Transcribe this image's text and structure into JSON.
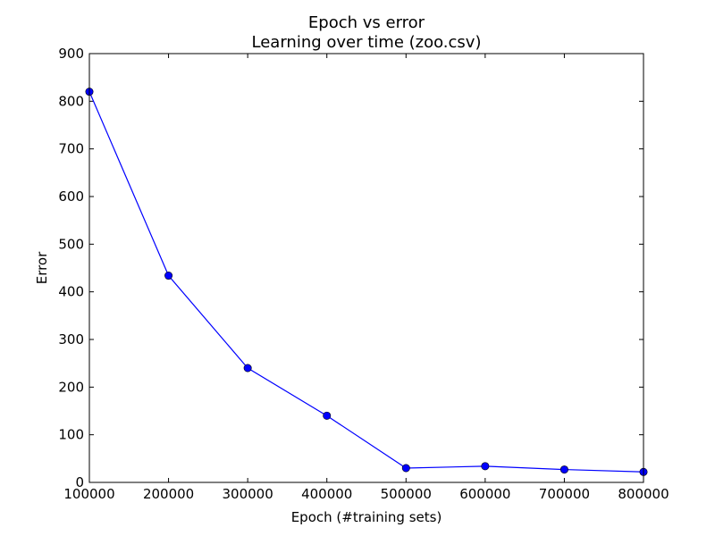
{
  "chart_data": {
    "type": "line",
    "title": "Epoch vs error",
    "subtitle": "Learning over time (zoo.csv)",
    "xlabel": "Epoch (#training sets)",
    "ylabel": "Error",
    "xlim": [
      100000,
      800000
    ],
    "ylim": [
      0,
      900
    ],
    "xticks": [
      100000,
      200000,
      300000,
      400000,
      500000,
      600000,
      700000,
      800000
    ],
    "yticks": [
      0,
      100,
      200,
      300,
      400,
      500,
      600,
      700,
      800,
      900
    ],
    "grid": false,
    "legend": "none",
    "color": "#0000ff",
    "marker": "circle",
    "series": [
      {
        "x": [
          100000,
          200000,
          300000,
          400000,
          500000,
          600000,
          700000,
          800000
        ],
        "y": [
          820,
          434,
          240,
          140,
          30,
          34,
          27,
          22
        ]
      }
    ]
  }
}
